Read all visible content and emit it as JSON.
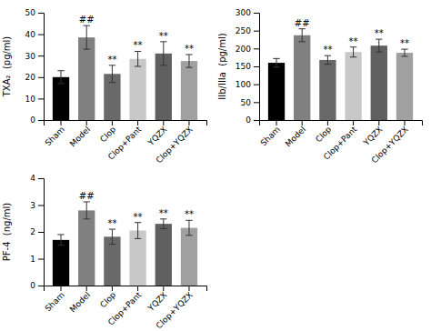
{
  "chart_data": [
    {
      "type": "bar",
      "ylabel": "TXA₂  (pg/ml)",
      "categories": [
        "Sham",
        "Model",
        "Clop",
        "Clop+Pant",
        "YQZX",
        "Clop+YQZX"
      ],
      "values": [
        20.0,
        38.5,
        21.5,
        28.5,
        31.0,
        27.5
      ],
      "errors": [
        3.0,
        5.5,
        4.0,
        3.5,
        5.5,
        3.0
      ],
      "colors": [
        "#000000",
        "#808080",
        "#696969",
        "#c8c8c8",
        "#606060",
        "#a0a0a0"
      ],
      "ylim": [
        0,
        50
      ],
      "yticks": [
        0,
        10,
        20,
        30,
        40,
        50
      ],
      "grid": false,
      "annotations": [
        {
          "x": "Model",
          "text": "##"
        },
        {
          "x": "Clop",
          "text": "**"
        },
        {
          "x": "Clop+Pant",
          "text": "**"
        },
        {
          "x": "YQZX",
          "text": "**"
        },
        {
          "x": "Clop+YQZX",
          "text": "**"
        }
      ]
    },
    {
      "type": "bar",
      "ylabel": "IIb/IIIa  (pg/ml)",
      "categories": [
        "Sham",
        "Model",
        "Clop",
        "Clop+Pant",
        "YQZX",
        "Clop+YQZX"
      ],
      "values": [
        160.0,
        237.0,
        168.0,
        190.0,
        208.0,
        188.0
      ],
      "errors": [
        12.0,
        18.0,
        12.0,
        14.0,
        18.0,
        10.0
      ],
      "colors": [
        "#000000",
        "#808080",
        "#696969",
        "#c8c8c8",
        "#606060",
        "#a0a0a0"
      ],
      "ylim": [
        0,
        300
      ],
      "yticks": [
        0,
        50,
        100,
        150,
        200,
        250,
        300
      ],
      "grid": false,
      "annotations": [
        {
          "x": "Model",
          "text": "##"
        },
        {
          "x": "Clop",
          "text": "**"
        },
        {
          "x": "Clop+Pant",
          "text": "**"
        },
        {
          "x": "YQZX",
          "text": "**"
        },
        {
          "x": "Clop+YQZX",
          "text": "**"
        }
      ]
    },
    {
      "type": "bar",
      "ylabel": "PF-4  (ng/ml)",
      "categories": [
        "Sham",
        "Model",
        "Clop",
        "Clop+Pant",
        "YQZX",
        "Clop+YQZX"
      ],
      "values": [
        1.7,
        2.8,
        1.82,
        2.05,
        2.3,
        2.15
      ],
      "errors": [
        0.2,
        0.32,
        0.28,
        0.3,
        0.18,
        0.28
      ],
      "colors": [
        "#000000",
        "#808080",
        "#696969",
        "#c8c8c8",
        "#606060",
        "#a0a0a0"
      ],
      "ylim": [
        0,
        4
      ],
      "yticks": [
        0,
        1,
        2,
        3,
        4
      ],
      "grid": false,
      "annotations": [
        {
          "x": "Model",
          "text": "##"
        },
        {
          "x": "Clop",
          "text": "**"
        },
        {
          "x": "Clop+Pant",
          "text": "**"
        },
        {
          "x": "YQZX",
          "text": "**"
        },
        {
          "x": "Clop+YQZX",
          "text": "**"
        }
      ]
    }
  ]
}
